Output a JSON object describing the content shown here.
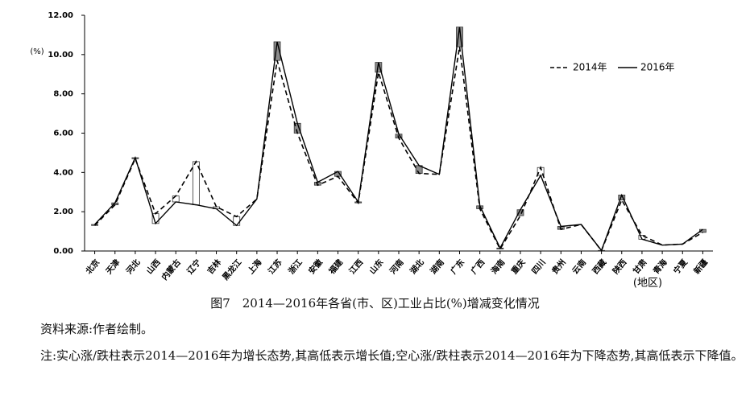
{
  "chart_data": {
    "type": "line",
    "y_label": "(%)",
    "x_label": "(地区)",
    "categories": [
      "北京",
      "天津",
      "河北",
      "山西",
      "内蒙古",
      "辽宁",
      "吉林",
      "黑龙江",
      "上海",
      "江苏",
      "浙江",
      "安徽",
      "福建",
      "江西",
      "山东",
      "河南",
      "湖北",
      "湖南",
      "广东",
      "广西",
      "海南",
      "重庆",
      "四川",
      "贵州",
      "云南",
      "西藏",
      "陕西",
      "甘肃",
      "青海",
      "宁夏",
      "新疆"
    ],
    "series": [
      {
        "name": "2014年",
        "color": "#000000",
        "line_style": "dashed",
        "values": [
          1.3,
          2.35,
          4.7,
          1.9,
          2.8,
          4.55,
          2.25,
          1.75,
          2.65,
          9.7,
          6.0,
          3.35,
          3.8,
          2.45,
          9.1,
          5.75,
          3.95,
          3.9,
          10.4,
          2.15,
          0.1,
          1.8,
          4.25,
          1.1,
          1.35,
          0.02,
          2.6,
          0.8,
          0.3,
          0.35,
          0.95
        ]
      },
      {
        "name": "2016年",
        "color": "#000000",
        "line_style": "solid",
        "values": [
          1.35,
          2.45,
          4.75,
          1.4,
          2.5,
          2.35,
          2.15,
          1.3,
          2.65,
          10.65,
          6.5,
          3.5,
          4.05,
          2.5,
          9.6,
          5.95,
          4.35,
          3.9,
          11.4,
          2.3,
          0.15,
          2.1,
          3.85,
          1.25,
          1.35,
          0.03,
          2.85,
          0.6,
          0.3,
          0.35,
          1.1
        ]
      }
    ],
    "up_bar_color": "#8c8c8c",
    "down_bar_color": "#ffffff",
    "ylim": [
      0,
      12
    ],
    "yticks": [
      {
        "value": 0,
        "label": "0.00"
      },
      {
        "value": 2,
        "label": "2.00"
      },
      {
        "value": 4,
        "label": "4.00"
      },
      {
        "value": 6,
        "label": "6.00"
      },
      {
        "value": 8,
        "label": "8.00"
      },
      {
        "value": 10,
        "label": "10.00"
      },
      {
        "value": 12,
        "label": "12.00"
      }
    ],
    "grid": false,
    "legend": "top-right"
  },
  "caption": "图7　2014—2016年各省(市、区)工业占比(%)增减变化情况",
  "source": "资料来源:作者绘制。",
  "note": "注:实心涨/跌柱表示2014—2016年为增长态势,其高低表示增长值;空心涨/跌柱表示2014—2016年为下降态势,其高低表示下降值。"
}
